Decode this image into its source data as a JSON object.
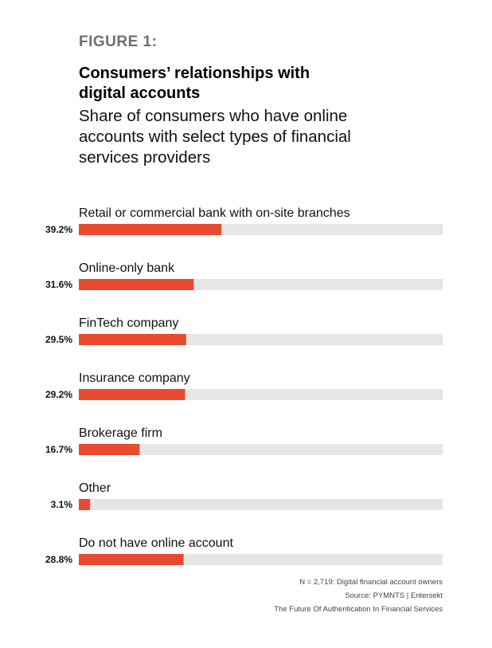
{
  "figure_label": "FIGURE 1:",
  "title_line1": "Consumers’ relationships with",
  "title_line2": "digital accounts",
  "subtitle_line1": "Share of consumers who have online",
  "subtitle_line2": "accounts with select types of financial",
  "subtitle_line3": "services providers",
  "colors": {
    "bar": "#e84a2f",
    "track": "#e6e6e6"
  },
  "chart_data": {
    "type": "bar",
    "orientation": "horizontal",
    "categories": [
      "Retail or commercial bank with on-site branches",
      "Online-only bank",
      "FinTech company",
      "Insurance company",
      "Brokerage firm",
      "Other",
      "Do not have online account"
    ],
    "values": [
      39.2,
      31.6,
      29.5,
      29.2,
      16.7,
      3.1,
      28.8
    ],
    "value_labels": [
      "39.2%",
      "31.6%",
      "29.5%",
      "29.2%",
      "16.7%",
      "3.1%",
      "28.8%"
    ],
    "xlim": [
      0,
      100
    ],
    "unit": "%"
  },
  "notes": {
    "sample": "N = 2,719: Digital financial account owners",
    "source": "Source: PYMNTS  |  Entersekt",
    "report": "The Future Of Authentication In Financial Services"
  }
}
